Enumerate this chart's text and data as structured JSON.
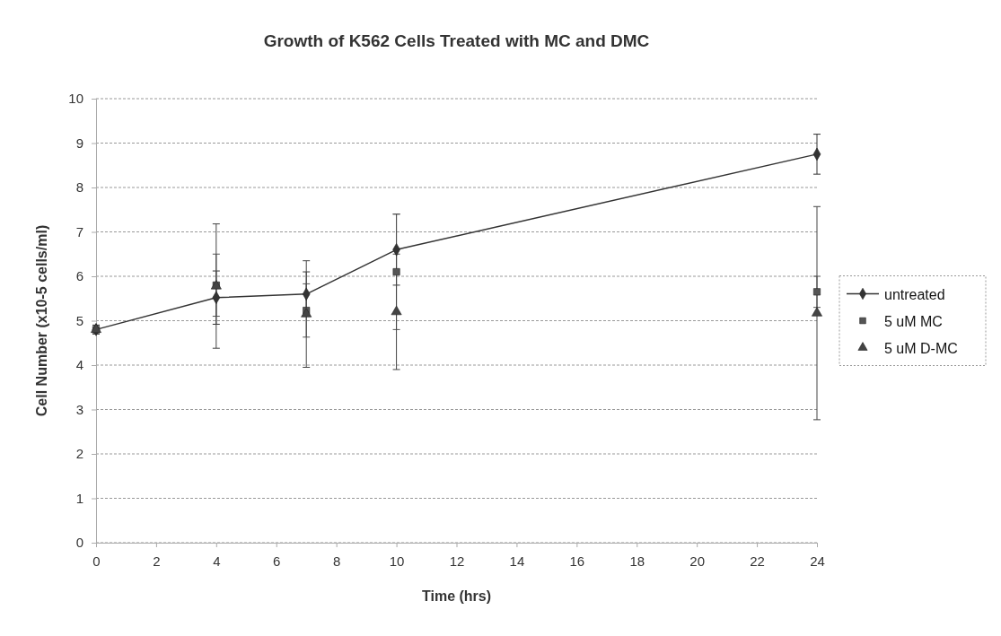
{
  "chart_data": {
    "type": "line",
    "title": "Growth of K562 Cells Treated with MC and DMC",
    "xlabel": "Time (hrs)",
    "ylabel": "Cell Number (x10-5 cells/ml)",
    "x": [
      0,
      4,
      7,
      10,
      24
    ],
    "series": [
      {
        "name": "untreated",
        "type": "line",
        "color": "#333333",
        "marker": "diamond",
        "values": [
          4.8,
          5.52,
          5.6,
          6.6,
          8.75
        ],
        "errors": [
          0.1,
          0.6,
          0.5,
          0.8,
          0.45
        ]
      },
      {
        "name": "5 uM MC",
        "type": "scatter",
        "color": "#555555",
        "marker": "square",
        "values": [
          4.8,
          5.8,
          5.23,
          6.1,
          5.65
        ],
        "errors": [
          0.1,
          0.7,
          0.6,
          1.3,
          0.35
        ]
      },
      {
        "name": "5 uM D-MC",
        "type": "scatter",
        "color": "#444444",
        "marker": "triangle",
        "values": [
          4.8,
          5.78,
          5.15,
          5.2,
          5.17
        ],
        "errors": [
          0.1,
          1.4,
          1.2,
          1.3,
          2.4
        ]
      }
    ],
    "xlim": [
      0,
      24
    ],
    "xticks": [
      0,
      2,
      4,
      6,
      8,
      10,
      12,
      14,
      16,
      18,
      20,
      22,
      24
    ],
    "ylim": [
      0,
      10
    ],
    "yticks": [
      0,
      1,
      2,
      3,
      4,
      5,
      6,
      7,
      8,
      9,
      10
    ],
    "grid": "y",
    "legend": "right"
  }
}
